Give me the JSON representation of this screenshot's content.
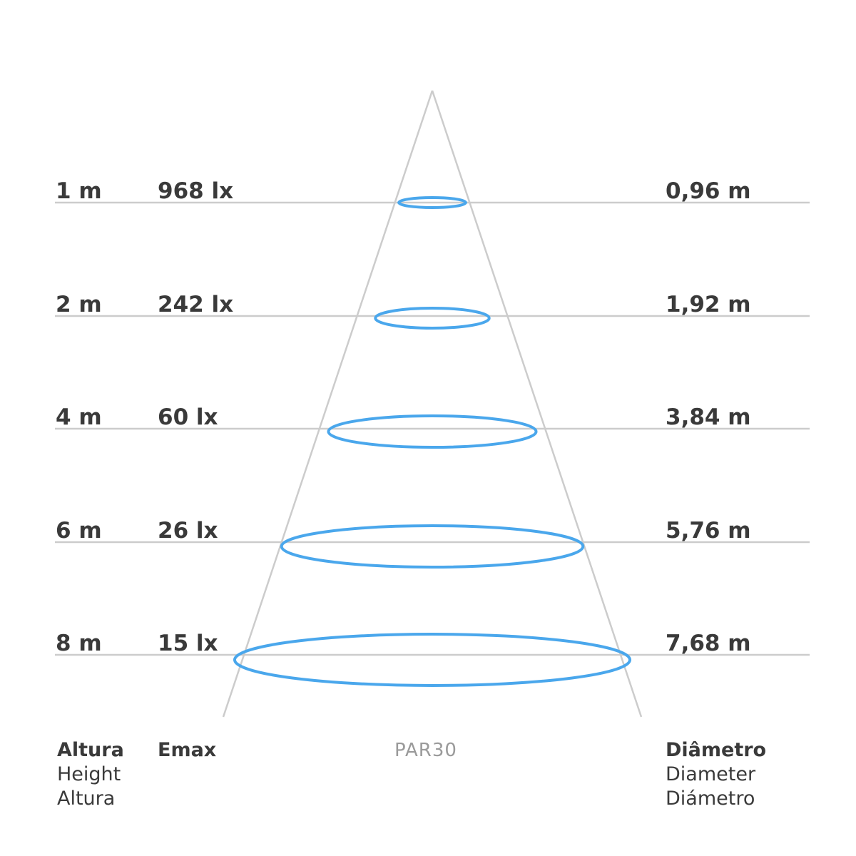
{
  "model": "PAR30",
  "colors": {
    "line": "#cccccc",
    "ellipse": "#4aa7ec",
    "text": "#3a3a3a",
    "model_text": "#9a9a9a"
  },
  "rows": [
    {
      "height": "1 m",
      "emax": "968 lx",
      "diameter": "0,96 m",
      "height_m": 1,
      "diameter_m": 0.96
    },
    {
      "height": "2 m",
      "emax": "242 lx",
      "diameter": "1,92 m",
      "height_m": 2,
      "diameter_m": 1.92
    },
    {
      "height": "4 m",
      "emax": "60 lx",
      "diameter": "3,84 m",
      "height_m": 4,
      "diameter_m": 3.84
    },
    {
      "height": "6 m",
      "emax": "26 lx",
      "diameter": "5,76 m",
      "height_m": 6,
      "diameter_m": 5.76
    },
    {
      "height": "8 m",
      "emax": "15 lx",
      "diameter": "7,68 m",
      "height_m": 8,
      "diameter_m": 7.68
    }
  ],
  "footer": {
    "height_bold": "Altura",
    "height_en": "Height",
    "height_es": "Altura",
    "emax": "Emax",
    "diameter_bold": "Diâmetro",
    "diameter_en": "Diameter",
    "diameter_es": "Diámetro"
  }
}
